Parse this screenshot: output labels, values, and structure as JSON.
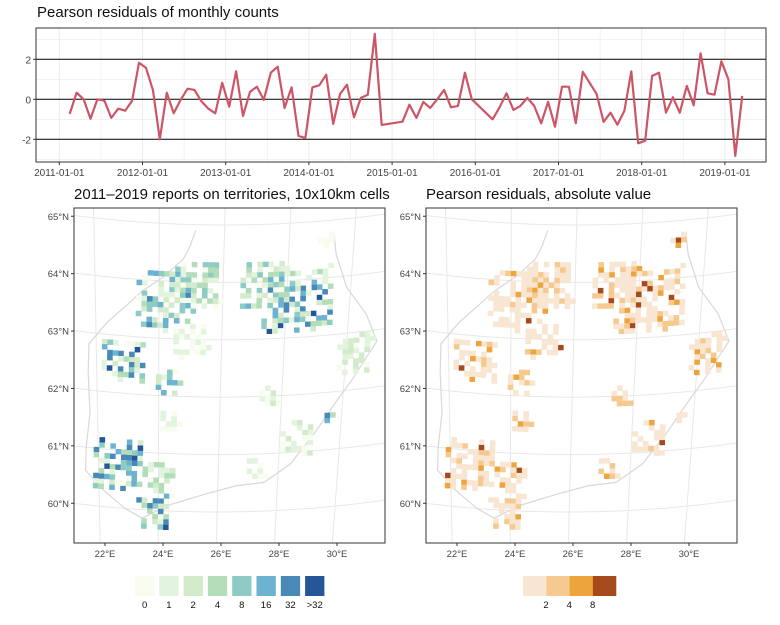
{
  "top": {
    "chart_data": {
      "type": "line",
      "title": "Pearson residuals of monthly counts",
      "xlabel": "",
      "ylabel": "",
      "x_tick_labels": [
        "2011-01-01",
        "2012-01-01",
        "2013-01-01",
        "2014-01-01",
        "2015-01-01",
        "2016-01-01",
        "2017-01-01",
        "2018-01-01",
        "2019-01-01"
      ],
      "y_tick_labels": [
        "-2",
        "0",
        "2"
      ],
      "ylim": [
        -3.1,
        3.6
      ],
      "reference_lines": [
        -2,
        0,
        2
      ],
      "color": "#cc5566",
      "grid": true,
      "x": [
        "2011-02",
        "2011-03",
        "2011-04",
        "2011-05",
        "2011-06",
        "2011-07",
        "2011-08",
        "2011-09",
        "2011-10",
        "2011-11",
        "2011-12",
        "2012-01",
        "2012-02",
        "2012-03",
        "2012-04",
        "2012-05",
        "2012-06",
        "2012-07",
        "2012-08",
        "2012-09",
        "2012-10",
        "2012-11",
        "2012-12",
        "2013-01",
        "2013-02",
        "2013-03",
        "2013-04",
        "2013-05",
        "2013-06",
        "2013-07",
        "2013-08",
        "2013-09",
        "2013-10",
        "2013-11",
        "2013-12",
        "2014-01",
        "2014-02",
        "2014-03",
        "2014-04",
        "2014-05",
        "2014-06",
        "2014-07",
        "2014-08",
        "2014-09",
        "2014-10",
        "2014-11",
        "2015-02",
        "2015-03",
        "2015-04",
        "2015-05",
        "2015-06",
        "2015-07",
        "2015-08",
        "2015-09",
        "2015-10",
        "2015-11",
        "2015-12",
        "2016-03",
        "2016-04",
        "2016-05",
        "2016-06",
        "2016-07",
        "2016-08",
        "2016-09",
        "2016-10",
        "2016-11",
        "2016-12",
        "2017-01",
        "2017-02",
        "2017-03",
        "2017-04",
        "2017-06",
        "2017-07",
        "2017-08",
        "2017-09",
        "2017-10",
        "2017-11",
        "2017-12",
        "2018-01",
        "2018-02",
        "2018-03",
        "2018-04",
        "2018-05",
        "2018-06",
        "2018-07",
        "2018-08",
        "2018-09",
        "2018-10",
        "2018-11",
        "2018-12",
        "2019-01",
        "2019-02",
        "2019-03"
      ],
      "y": [
        -0.73,
        0.33,
        0,
        -0.97,
        0,
        -0.07,
        -0.93,
        -0.47,
        -0.57,
        -0.07,
        1.83,
        1.57,
        0.47,
        -2.0,
        0.33,
        -0.7,
        -0.03,
        0.53,
        0.47,
        -0.1,
        -0.47,
        -0.7,
        0.83,
        -0.37,
        1.4,
        -0.83,
        0.37,
        0.63,
        -0.03,
        1.33,
        1.63,
        -0.43,
        0.6,
        -1.83,
        -1.93,
        0.6,
        0.7,
        1.23,
        -1.23,
        0.27,
        0.73,
        -0.9,
        0.07,
        0.23,
        3.27,
        -1.28,
        -1.12,
        -0.27,
        -0.93,
        -0.13,
        -0.43,
        0,
        0.47,
        -0.4,
        -0.33,
        1.33,
        0,
        -1.0,
        -0.4,
        0.3,
        -0.53,
        -0.33,
        0.07,
        -0.33,
        -1.2,
        -0.13,
        -1.37,
        0.63,
        0.63,
        -1.2,
        1.37,
        0.27,
        -1.13,
        -0.67,
        -1.27,
        -0.57,
        1.4,
        -2.2,
        -2.07,
        1.17,
        1.33,
        -0.67,
        0.1,
        -0.67,
        0.67,
        -0.3,
        2.3,
        0.3,
        0.23,
        1.9,
        1.0,
        -2.83,
        0.17
      ]
    }
  },
  "maps": {
    "lat_tick_labels": [
      "65°N",
      "64°N",
      "63°N",
      "62°N",
      "61°N",
      "60°N"
    ],
    "lon_tick_labels": [
      "22°E",
      "24°E",
      "26°E",
      "28°E",
      "30°E"
    ],
    "left": {
      "title": "2011–2019 reports on territories, 10x10km cells",
      "legend_labels": [
        "0",
        "1",
        "2",
        "4",
        "8",
        "16",
        "32",
        ">32"
      ],
      "colors": [
        "#f7fcef",
        "#e2f3de",
        "#d3eacb",
        "#b3dcb8",
        "#8ecbc4",
        "#6bb3d0",
        "#4889b8",
        "#25569a"
      ]
    },
    "right": {
      "title": "Pearson residuals, absolute value",
      "legend_labels": [
        "2",
        "4",
        "8"
      ],
      "colors": [
        "#f8e5d2",
        "#f5c98f",
        "#eda43c",
        "#a44a1d"
      ]
    },
    "clusters": [
      {
        "lon": 22.5,
        "lat": 62.6,
        "spread": 0.45,
        "level": 6
      },
      {
        "lon": 22.4,
        "lat": 60.8,
        "spread": 0.5,
        "level": 6
      },
      {
        "lon": 23.8,
        "lat": 60.0,
        "spread": 0.35,
        "level": 6
      },
      {
        "lon": 24.0,
        "lat": 63.7,
        "spread": 0.6,
        "level": 5
      },
      {
        "lon": 25.0,
        "lat": 64.0,
        "spread": 0.5,
        "level": 4
      },
      {
        "lon": 28.5,
        "lat": 63.7,
        "spread": 0.7,
        "level": 6
      },
      {
        "lon": 27.3,
        "lat": 64.0,
        "spread": 0.5,
        "level": 4
      },
      {
        "lon": 24.1,
        "lat": 62.3,
        "spread": 0.25,
        "level": 5
      },
      {
        "lon": 30.6,
        "lat": 62.7,
        "spread": 0.4,
        "level": 2
      },
      {
        "lon": 28.6,
        "lat": 61.3,
        "spread": 0.35,
        "level": 2
      },
      {
        "lon": 27.2,
        "lat": 60.8,
        "spread": 0.2,
        "level": 1
      },
      {
        "lon": 24.9,
        "lat": 63.0,
        "spread": 0.35,
        "level": 1
      },
      {
        "lon": 24.2,
        "lat": 61.6,
        "spread": 0.2,
        "level": 1
      },
      {
        "lon": 27.6,
        "lat": 62.0,
        "spread": 0.2,
        "level": 2
      },
      {
        "lon": 29.6,
        "lat": 61.6,
        "spread": 0.1,
        "level": 6
      },
      {
        "lon": 29.5,
        "lat": 64.7,
        "spread": 0.1,
        "level": 0
      },
      {
        "lon": 23.8,
        "lat": 60.6,
        "spread": 0.35,
        "level": 3
      }
    ]
  }
}
